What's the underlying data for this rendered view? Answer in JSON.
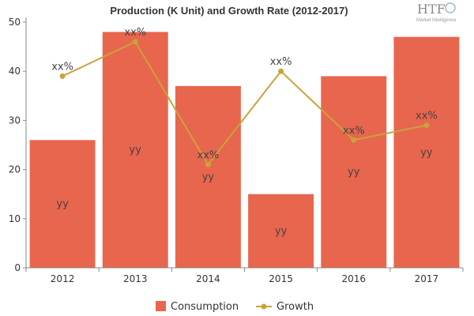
{
  "chart_data": {
    "type": "bar",
    "title": "Production (K Unit) and Growth Rate (2012-2017)",
    "categories": [
      "2012",
      "2013",
      "2014",
      "2015",
      "2016",
      "2017"
    ],
    "ylim": [
      0,
      50
    ],
    "yticks": [
      "0",
      "10",
      "20",
      "30",
      "40",
      "50"
    ],
    "grid": false,
    "legend_position": "bottom",
    "series": [
      {
        "name": "Consumption",
        "kind": "bar",
        "color": "#e8664d",
        "values": [
          26,
          48,
          37,
          15,
          39,
          47
        ],
        "labels": [
          "yy",
          "yy",
          "yy",
          "yy",
          "yy",
          "yy"
        ]
      },
      {
        "name": "Growth",
        "kind": "line",
        "color": "#c9a23c",
        "values": [
          39,
          46,
          21,
          40,
          26,
          29
        ],
        "labels": [
          "xx%",
          "xx%",
          "xx%",
          "xx%",
          "xx%",
          "xx%"
        ]
      }
    ]
  },
  "logo": {
    "name": "HTF",
    "tagline": "Market Intelligence"
  }
}
